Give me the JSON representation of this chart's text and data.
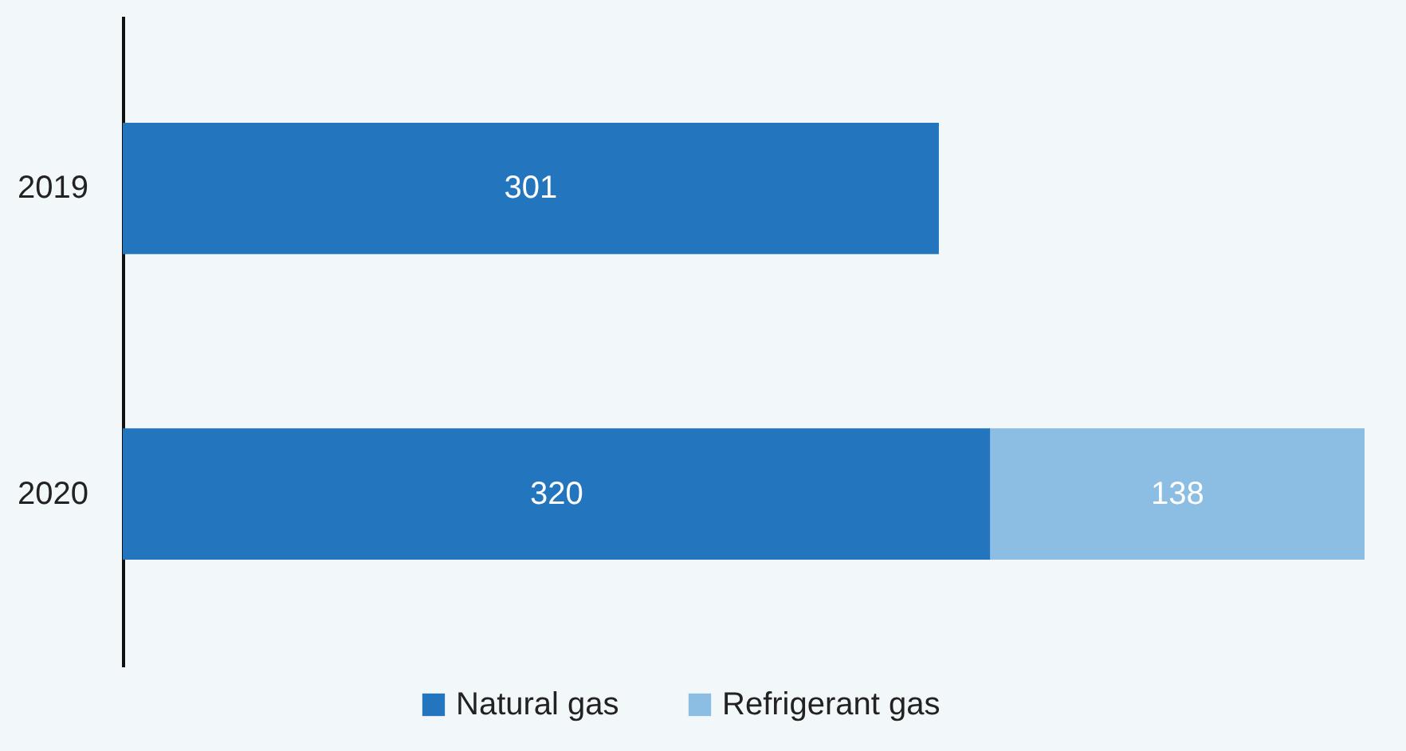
{
  "chart_data": {
    "type": "bar",
    "orientation": "horizontal",
    "stacked": true,
    "categories": [
      "2019",
      "2020"
    ],
    "series": [
      {
        "name": "Natural gas",
        "color": "#2376bd",
        "values": [
          301,
          320
        ]
      },
      {
        "name": "Refrigerant gas",
        "color": "#8cbde2",
        "values": [
          null,
          138
        ]
      }
    ],
    "xlim": [
      0,
      458
    ],
    "data_labels": true,
    "legend": "bottom",
    "tick_labels": "y"
  }
}
